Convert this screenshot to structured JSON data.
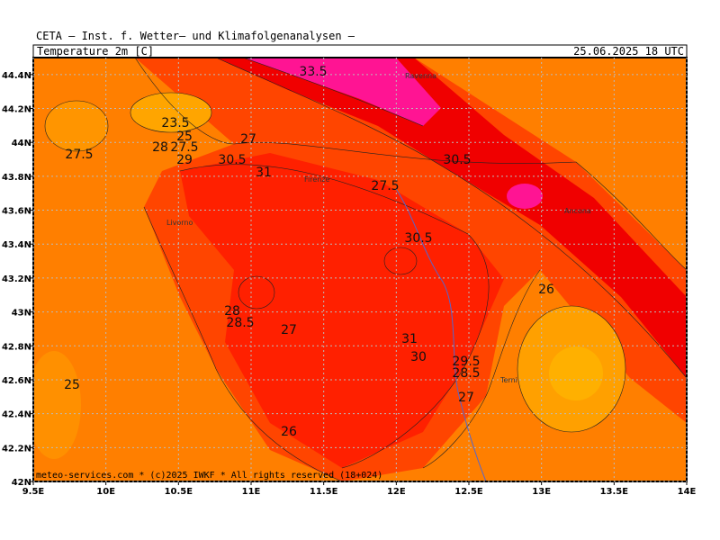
{
  "header": {
    "institute": "CETA — Inst. f. Wetter— und Klimafolgenanalysen —",
    "variable": "Temperature_2m_[C]",
    "datetime": "25.06.2025 18 UTC"
  },
  "map": {
    "xlim": [
      9.5,
      14
    ],
    "ylim": [
      42,
      44.5
    ],
    "xticks": [
      {
        "value": 9.5,
        "label": "9.5E"
      },
      {
        "value": 10,
        "label": "10E"
      },
      {
        "value": 10.5,
        "label": "10.5E"
      },
      {
        "value": 11,
        "label": "11E"
      },
      {
        "value": 11.5,
        "label": "11.5E"
      },
      {
        "value": 12,
        "label": "12E"
      },
      {
        "value": 12.5,
        "label": "12.5E"
      },
      {
        "value": 13,
        "label": "13E"
      },
      {
        "value": 13.5,
        "label": "13.5E"
      },
      {
        "value": 14,
        "label": "14E"
      }
    ],
    "yticks": [
      {
        "value": 42,
        "label": "42N"
      },
      {
        "value": 42.2,
        "label": "42.2N"
      },
      {
        "value": 42.4,
        "label": "42.4N"
      },
      {
        "value": 42.6,
        "label": "42.6N"
      },
      {
        "value": 42.8,
        "label": "42.8N"
      },
      {
        "value": 43,
        "label": "43N"
      },
      {
        "value": 43.2,
        "label": "43.2N"
      },
      {
        "value": 43.4,
        "label": "43.4N"
      },
      {
        "value": 43.6,
        "label": "43.6N"
      },
      {
        "value": 43.8,
        "label": "43.8N"
      },
      {
        "value": 44,
        "label": "44N"
      },
      {
        "value": 44.2,
        "label": "44.2N"
      },
      {
        "value": 44.4,
        "label": "44.4N"
      }
    ],
    "grid": true,
    "contour_labels": [
      33.5,
      23.5,
      25,
      27,
      28,
      27.5,
      27.5,
      29,
      30.5,
      31,
      30.5,
      27.5,
      30.5,
      26,
      28,
      28.5,
      27,
      31,
      30,
      29.5,
      28.5,
      25,
      27,
      26
    ],
    "cities": [
      "Ravenna",
      "Firenze",
      "Livorno",
      "Ancona",
      "Terni"
    ]
  },
  "footer": "meteo-services.com * (c)2025 IWKF * All rights reserved (18+024)"
}
